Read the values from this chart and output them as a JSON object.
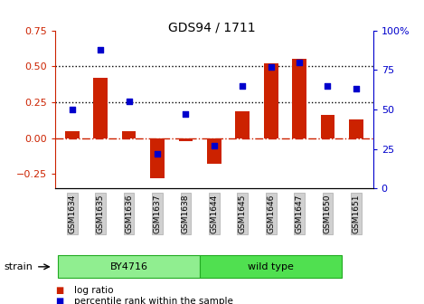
{
  "title": "GDS94 / 1711",
  "samples": [
    "GSM1634",
    "GSM1635",
    "GSM1636",
    "GSM1637",
    "GSM1638",
    "GSM1644",
    "GSM1645",
    "GSM1646",
    "GSM1647",
    "GSM1650",
    "GSM1651"
  ],
  "log_ratio": [
    0.05,
    0.42,
    0.05,
    -0.28,
    -0.02,
    -0.18,
    0.19,
    0.52,
    0.55,
    0.16,
    0.13
  ],
  "percentile_rank": [
    50,
    88,
    55,
    22,
    47,
    27,
    65,
    77,
    80,
    65,
    63
  ],
  "bar_color": "#cc2200",
  "dot_color": "#0000cc",
  "left_ylim": [
    -0.35,
    0.75
  ],
  "right_ylim": [
    0,
    100
  ],
  "left_yticks": [
    -0.25,
    0.0,
    0.25,
    0.5,
    0.75
  ],
  "right_yticks": [
    0,
    25,
    50,
    75,
    100
  ],
  "hline_y": [
    0.25,
    0.5
  ],
  "zero_line_y": 0.0,
  "groups": [
    {
      "label": "BY4716",
      "start": 0,
      "end": 5,
      "color": "#90ee90"
    },
    {
      "label": "wild type",
      "start": 5,
      "end": 10,
      "color": "#50e050"
    }
  ],
  "strain_label": "strain",
  "legend_items": [
    {
      "label": "log ratio",
      "color": "#cc2200"
    },
    {
      "label": "percentile rank within the sample",
      "color": "#0000cc"
    }
  ],
  "bg_color": "#ffffff",
  "plot_bg_color": "#ffffff"
}
